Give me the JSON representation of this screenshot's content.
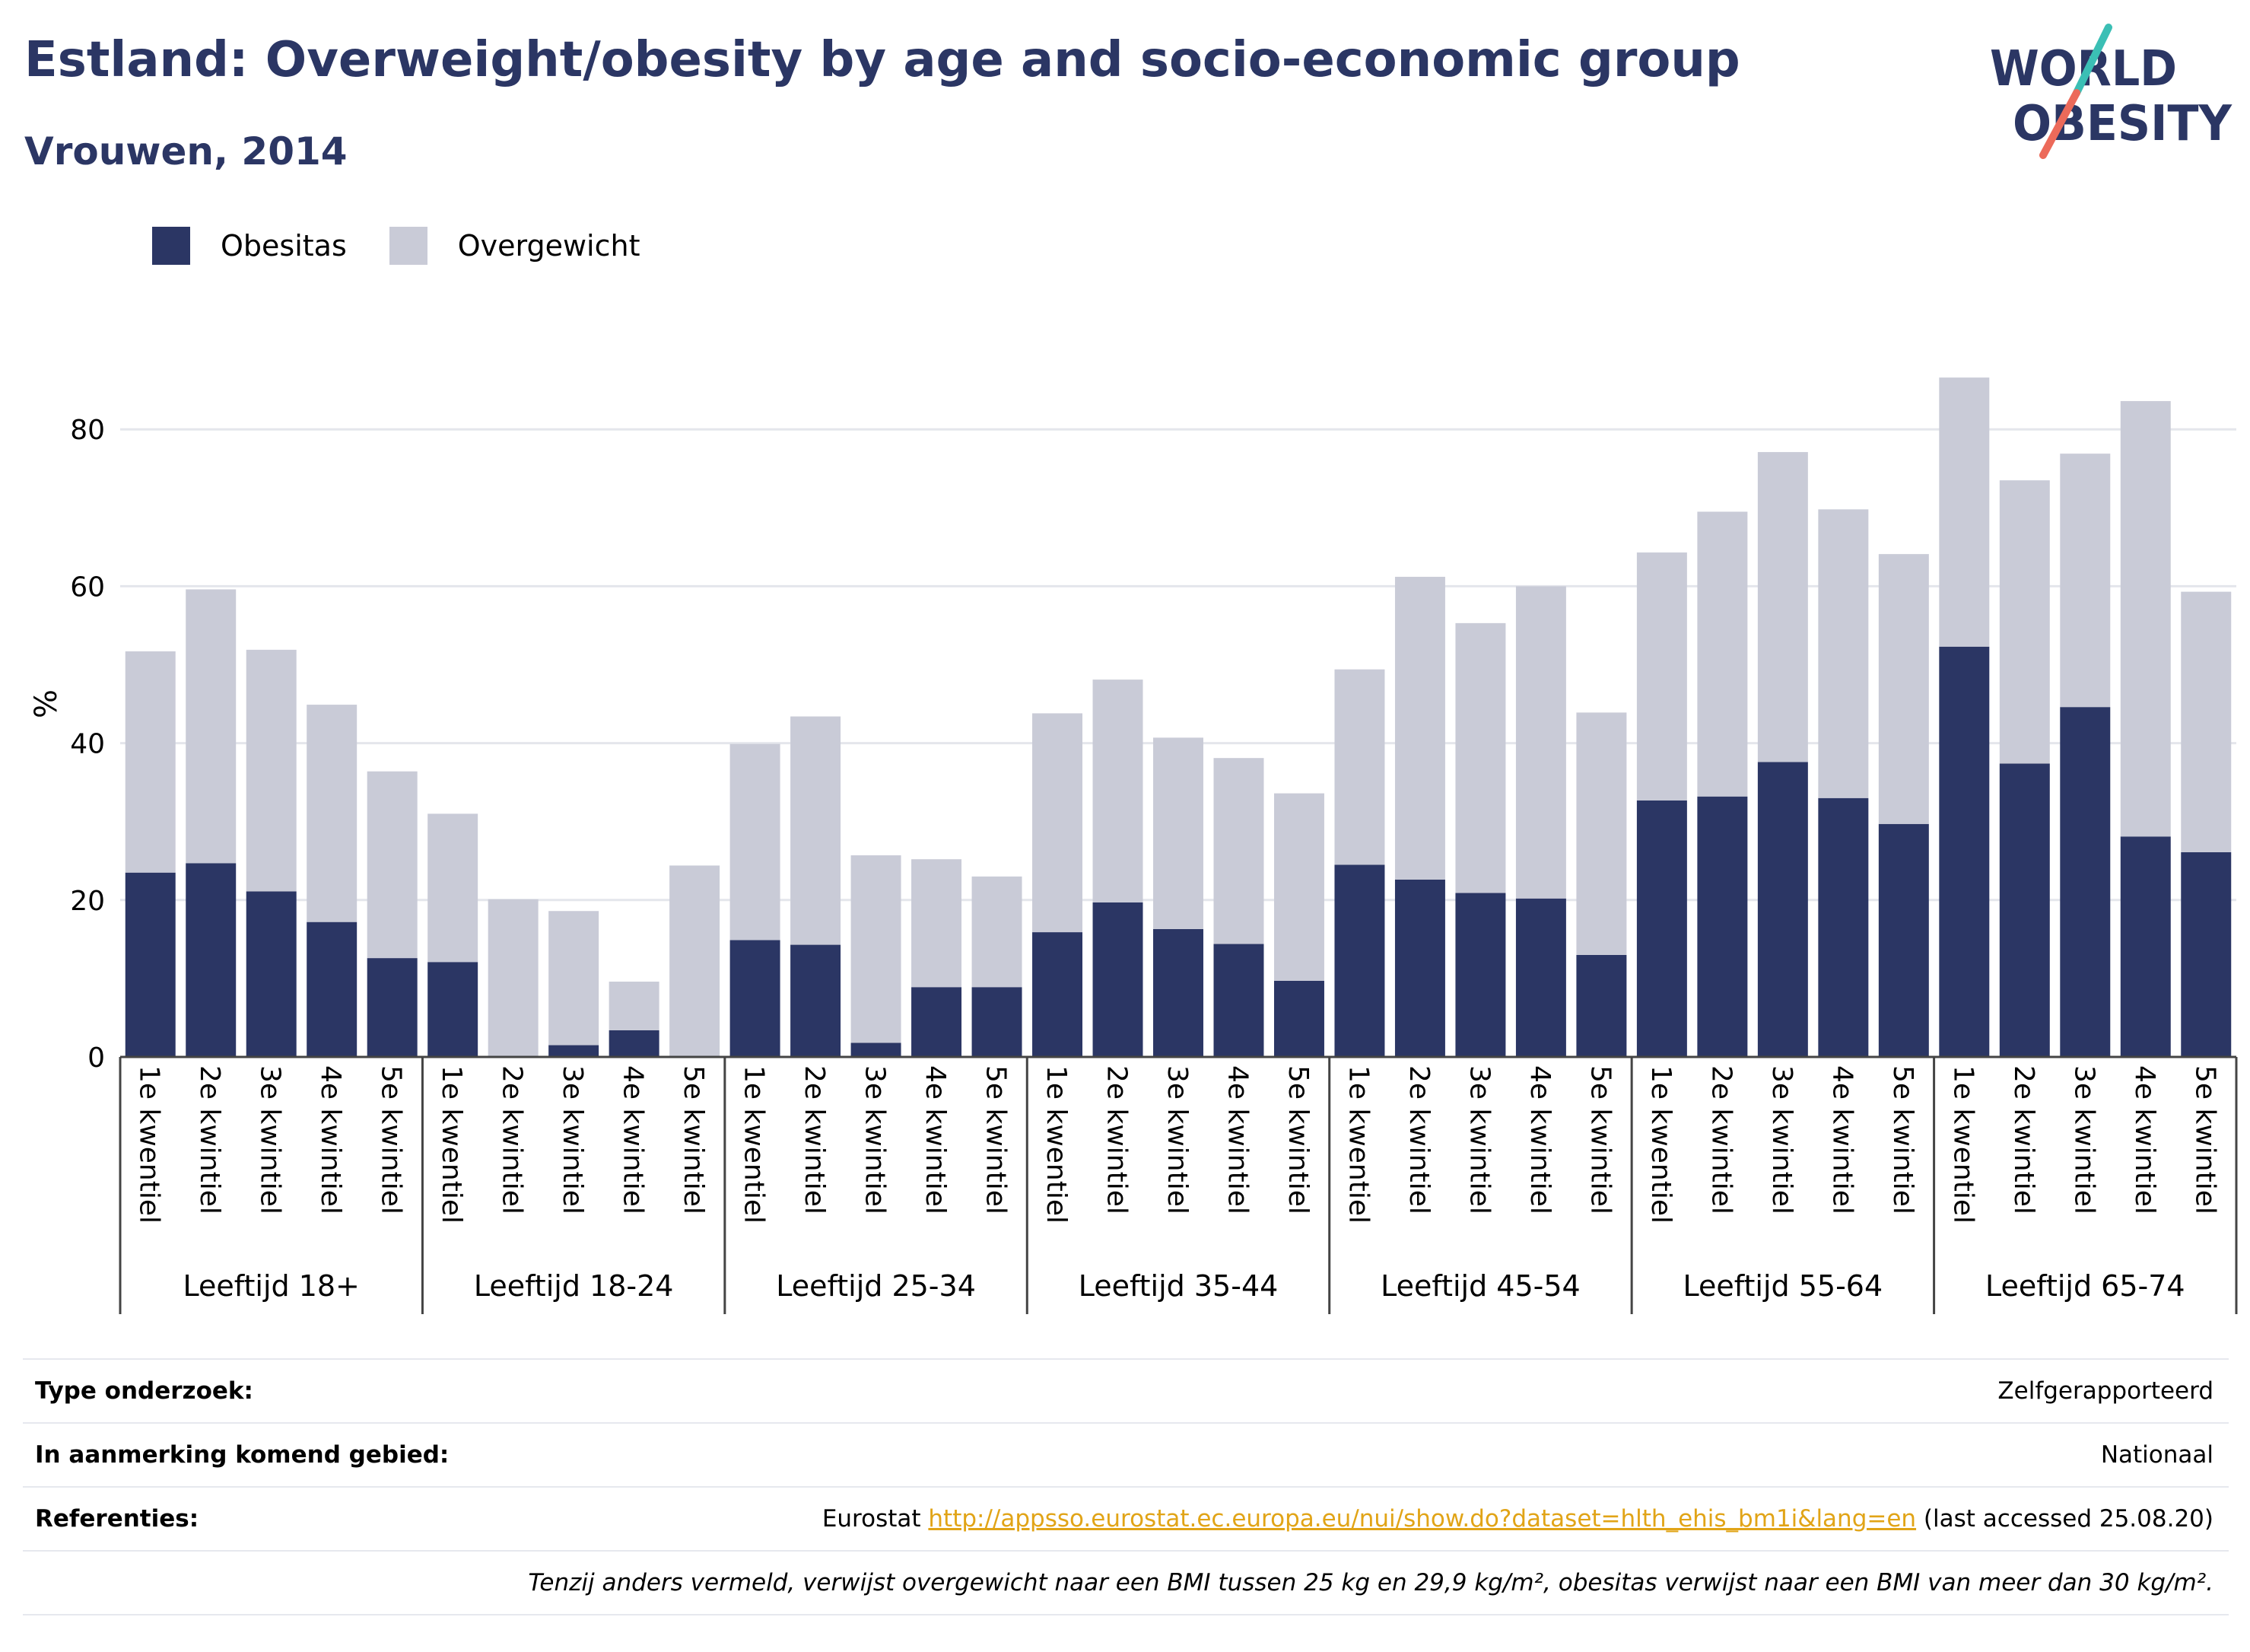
{
  "header": {
    "title": "Estland: Overweight/obesity by age and socio-economic group",
    "subtitle": "Vrouwen, 2014",
    "logo_line1": "WORLD",
    "logo_line2": "OBESITY"
  },
  "colors": {
    "obesitas": "#2b3664",
    "overgewicht": "#c9cbd7",
    "title": "#2b3664",
    "link": "#e1a417",
    "logo_teal": "#3bbfb5",
    "logo_coral": "#ec6a5a"
  },
  "chart_data": {
    "type": "bar",
    "stacked": true,
    "ylabel": "%",
    "ylim": [
      0,
      90
    ],
    "yticks": [
      0,
      20,
      40,
      60,
      80
    ],
    "grid": true,
    "legend_position": "top-left",
    "groups": [
      "Leeftijd 18+",
      "Leeftijd 18-24",
      "Leeftijd 25-34",
      "Leeftijd 35-44",
      "Leeftijd 45-54",
      "Leeftijd 55-64",
      "Leeftijd 65-74"
    ],
    "categories": [
      "1e kwentiel",
      "2e kwintiel",
      "3e kwintiel",
      "4e kwintiel",
      "5e kwintiel"
    ],
    "series": [
      {
        "name": "Obesitas",
        "values": [
          [
            23.5,
            24.7,
            21.1,
            17.2,
            12.6
          ],
          [
            12.1,
            0,
            1.5,
            3.4,
            0
          ],
          [
            14.9,
            14.3,
            1.8,
            8.9,
            8.9
          ],
          [
            15.9,
            19.7,
            16.3,
            14.4,
            9.7
          ],
          [
            24.5,
            22.6,
            20.9,
            20.2,
            13.0
          ],
          [
            32.7,
            33.2,
            37.6,
            33.0,
            29.7
          ],
          [
            52.3,
            37.4,
            44.6,
            28.1,
            26.1
          ]
        ]
      },
      {
        "name": "Overgewicht",
        "values": [
          [
            28.2,
            34.9,
            30.8,
            27.7,
            23.8
          ],
          [
            18.9,
            20.1,
            17.1,
            6.2,
            24.4
          ],
          [
            25.0,
            29.1,
            23.9,
            16.3,
            14.1
          ],
          [
            27.9,
            28.4,
            24.4,
            23.7,
            23.9
          ],
          [
            24.9,
            38.6,
            34.4,
            39.8,
            30.9
          ],
          [
            31.6,
            36.3,
            39.5,
            36.8,
            34.4
          ],
          [
            34.3,
            36.1,
            32.3,
            55.5,
            33.2
          ]
        ]
      }
    ]
  },
  "info": {
    "survey_type_label": "Type onderzoek:",
    "survey_type_value": "Zelfgerapporteerd",
    "area_label": "In aanmerking komend gebied:",
    "area_value": "Nationaal",
    "references_label": "Referenties:",
    "references_prefix": "Eurostat ",
    "references_url": "http://appsso.eurostat.ec.europa.eu/nui/show.do?dataset=hlth_ehis_bm1i&lang=en",
    "references_suffix": " (last accessed 25.08.20)",
    "note": "Tenzij anders vermeld, verwijst overgewicht naar een BMI tussen 25 kg en 29,9 kg/m², obesitas verwijst naar een BMI van meer dan 30 kg/m²."
  }
}
